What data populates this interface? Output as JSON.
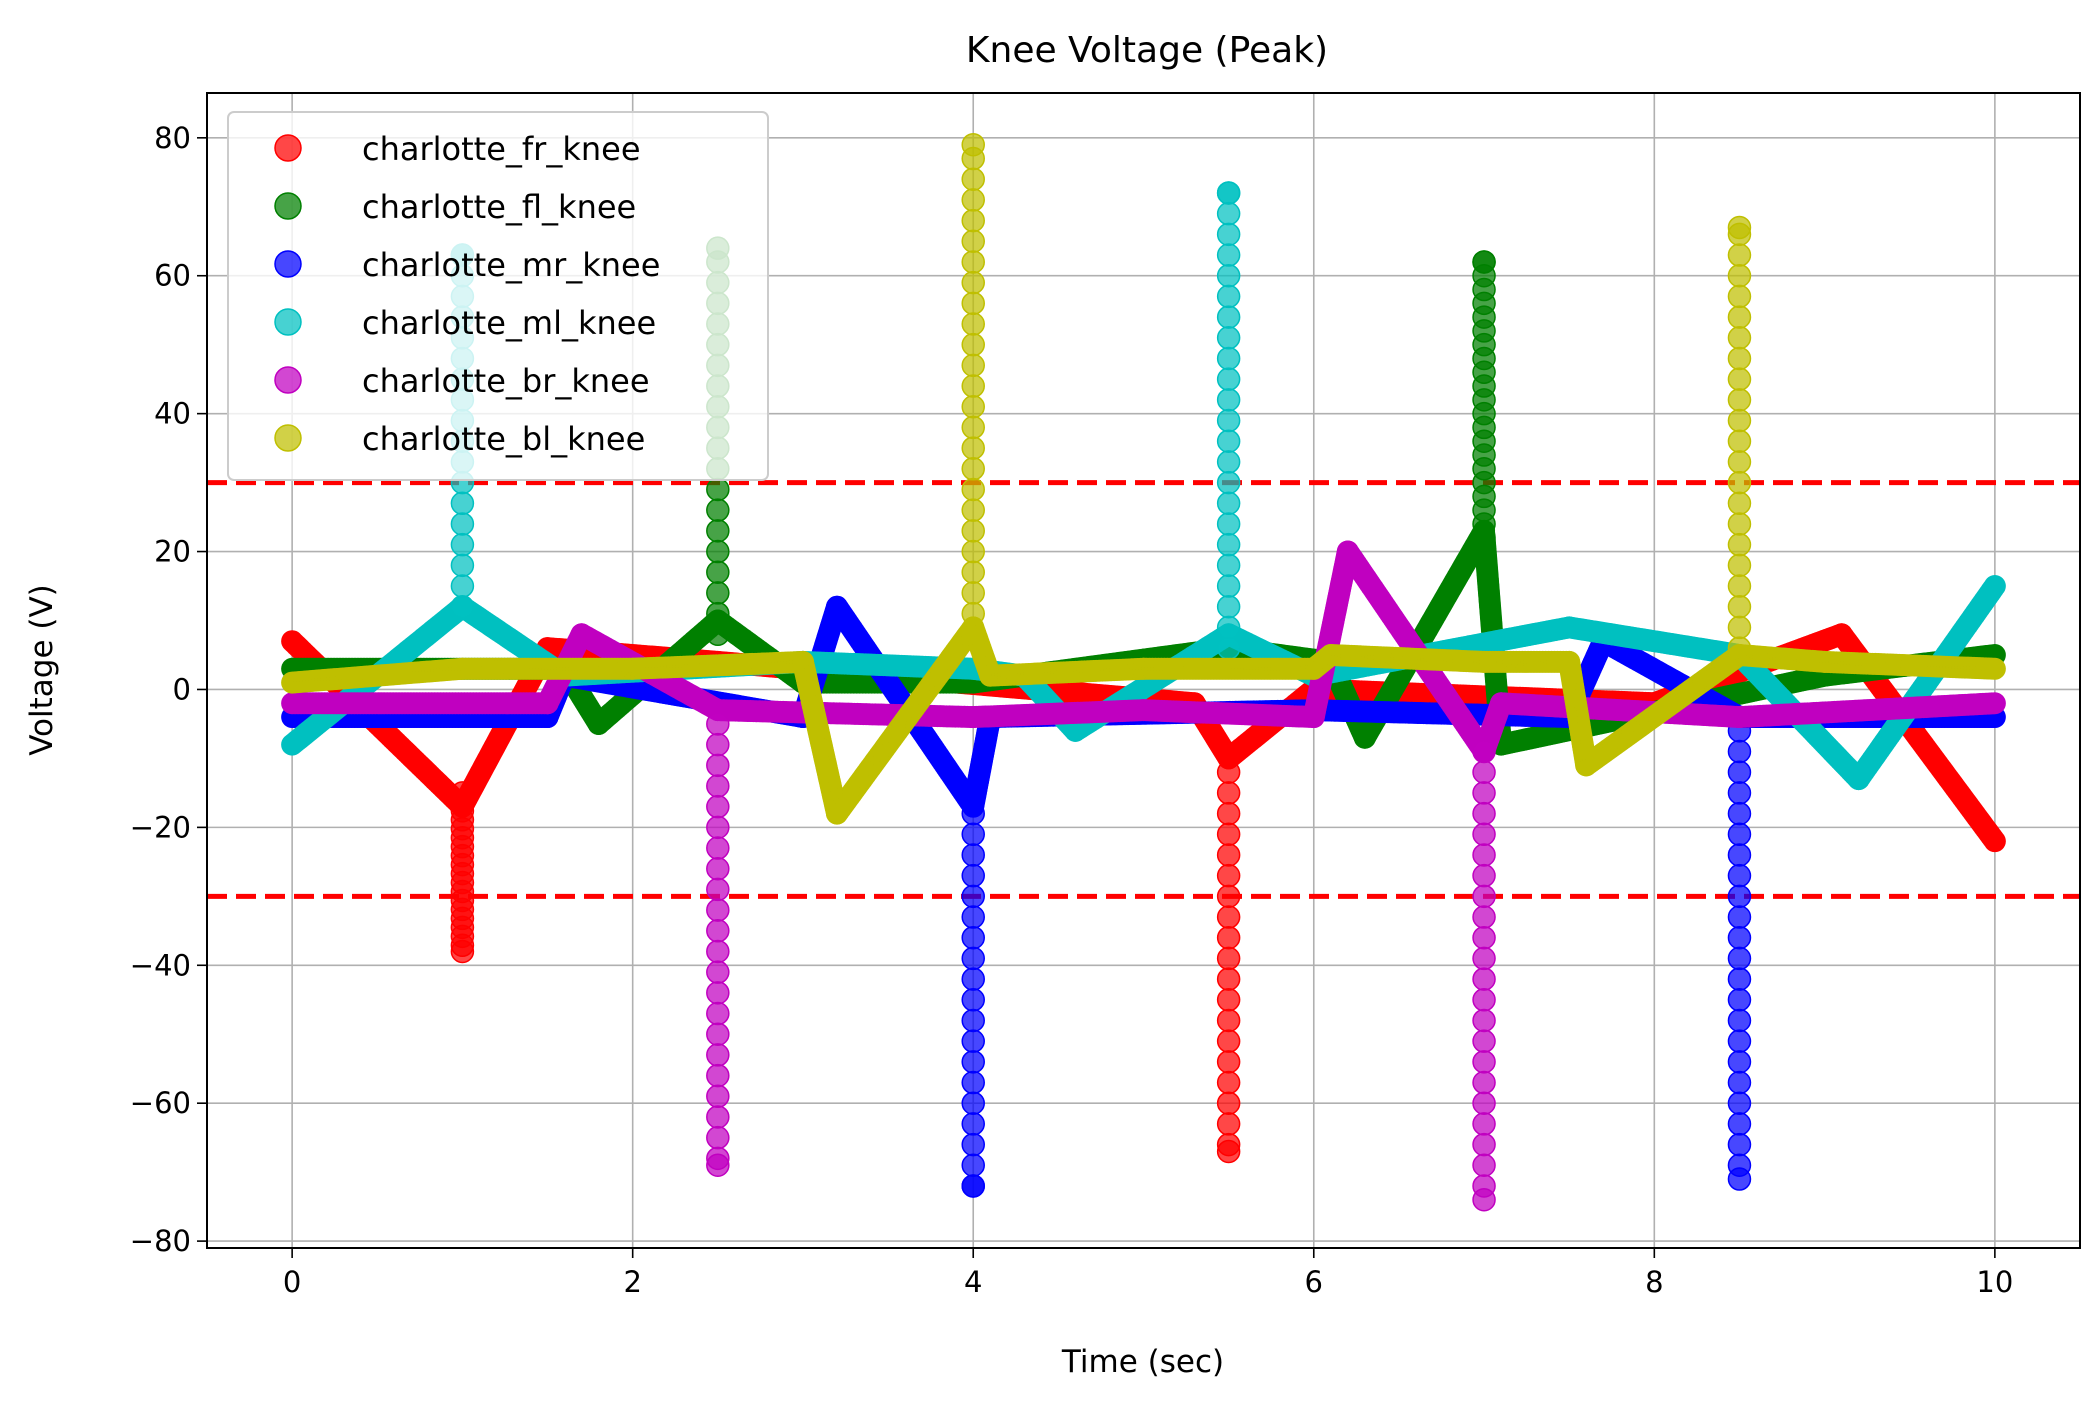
{
  "chart_data": {
    "type": "scatter",
    "title": "Knee Voltage (Peak)",
    "xlabel": "Time (sec)",
    "ylabel": "Voltage (V)",
    "xlim": [
      -0.5,
      10.5
    ],
    "ylim": [
      -81,
      86.5
    ],
    "xticks": [
      0,
      2,
      4,
      6,
      8,
      10
    ],
    "yticks": [
      -80,
      -60,
      -40,
      -20,
      0,
      20,
      40,
      60,
      80
    ],
    "xtick_labels": [
      "0",
      "2",
      "4",
      "6",
      "8",
      "10"
    ],
    "ytick_labels": [
      "−80",
      "−60",
      "−40",
      "−20",
      "0",
      "20",
      "40",
      "60",
      "80"
    ],
    "grid": true,
    "legend_position": "upper-left",
    "thresholds": [
      {
        "y": 30,
        "color": "#ff0000",
        "style": "dashed"
      },
      {
        "y": -30,
        "color": "#ff0000",
        "style": "dashed"
      }
    ],
    "series": [
      {
        "name": "charlotte_fr_knee",
        "color": "#ff0000",
        "points": [
          [
            0,
            7
          ],
          [
            1,
            -17
          ],
          [
            1.5,
            6
          ],
          [
            2.5,
            4
          ],
          [
            5.3,
            -2
          ],
          [
            5.5,
            -10
          ],
          [
            6,
            0
          ],
          [
            8,
            -2
          ],
          [
            9.1,
            8
          ],
          [
            10,
            -22
          ]
        ],
        "spikes": [
          {
            "x": 1,
            "from": -15,
            "to": -38,
            "step": 1.3
          },
          {
            "x": 5.5,
            "from": -12,
            "to": -67,
            "step": 3
          }
        ]
      },
      {
        "name": "charlotte_fl_knee",
        "color": "#008000",
        "points": [
          [
            0,
            3
          ],
          [
            1.6,
            3
          ],
          [
            1.8,
            -5
          ],
          [
            2.5,
            10
          ],
          [
            3,
            1
          ],
          [
            4,
            1
          ],
          [
            5.5,
            6
          ],
          [
            6.1,
            4
          ],
          [
            6.3,
            -7
          ],
          [
            7,
            23
          ],
          [
            7.1,
            -8
          ],
          [
            9,
            2
          ],
          [
            10,
            5
          ]
        ],
        "spikes": [
          {
            "x": 2.5,
            "from": 8,
            "to": 64,
            "step": 3
          },
          {
            "x": 7,
            "from": 22,
            "to": 62,
            "step": 2
          }
        ]
      },
      {
        "name": "charlotte_mr_knee",
        "color": "#0000ff",
        "points": [
          [
            0,
            -4
          ],
          [
            1.5,
            -4
          ],
          [
            1.6,
            2
          ],
          [
            3,
            -4
          ],
          [
            3.2,
            12
          ],
          [
            4,
            -17
          ],
          [
            4.1,
            -4
          ],
          [
            6,
            -3
          ],
          [
            7.5,
            -4
          ],
          [
            7.7,
            7
          ],
          [
            8.5,
            -4
          ],
          [
            10,
            -4
          ]
        ],
        "spikes": [
          {
            "x": 4,
            "from": -18,
            "to": -72,
            "step": 3
          },
          {
            "x": 8.5,
            "from": -6,
            "to": -71,
            "step": 3
          }
        ]
      },
      {
        "name": "charlotte_ml_knee",
        "color": "#00c0c0",
        "points": [
          [
            0,
            -8
          ],
          [
            1,
            12
          ],
          [
            1.6,
            2
          ],
          [
            3,
            4
          ],
          [
            4,
            3
          ],
          [
            4.3,
            2
          ],
          [
            4.6,
            -6
          ],
          [
            5.5,
            8
          ],
          [
            6,
            2
          ],
          [
            7.5,
            9
          ],
          [
            8.5,
            5
          ],
          [
            9.2,
            -13
          ],
          [
            10,
            15
          ]
        ],
        "spikes": [
          {
            "x": 1,
            "from": 12,
            "to": 63,
            "step": 3
          },
          {
            "x": 5.5,
            "from": 6,
            "to": 72,
            "step": 3
          }
        ]
      },
      {
        "name": "charlotte_br_knee",
        "color": "#c000c0",
        "points": [
          [
            0,
            -2
          ],
          [
            1.5,
            -2
          ],
          [
            1.7,
            8
          ],
          [
            2.5,
            -3
          ],
          [
            4,
            -4
          ],
          [
            5,
            -3
          ],
          [
            6,
            -4
          ],
          [
            6.2,
            20
          ],
          [
            7,
            -9
          ],
          [
            7.1,
            -2
          ],
          [
            8.5,
            -4
          ],
          [
            10,
            -2
          ]
        ],
        "spikes": [
          {
            "x": 2.5,
            "from": -5,
            "to": -69,
            "step": 3
          },
          {
            "x": 7,
            "from": -9,
            "to": -74,
            "step": 3
          }
        ]
      },
      {
        "name": "charlotte_bl_knee",
        "color": "#bfbf00",
        "points": [
          [
            0,
            1
          ],
          [
            1,
            3
          ],
          [
            2,
            3
          ],
          [
            3,
            4
          ],
          [
            3.2,
            -18
          ],
          [
            4,
            9
          ],
          [
            4.1,
            2
          ],
          [
            5,
            3
          ],
          [
            6,
            3
          ],
          [
            6.1,
            5
          ],
          [
            7,
            4
          ],
          [
            7.5,
            4
          ],
          [
            7.6,
            -11
          ],
          [
            8.5,
            5
          ],
          [
            9,
            4
          ],
          [
            10,
            3
          ]
        ],
        "spikes": [
          {
            "x": 4,
            "from": 8,
            "to": 79,
            "step": 3
          },
          {
            "x": 8.5,
            "from": 6,
            "to": 67,
            "step": 3
          }
        ]
      }
    ]
  }
}
